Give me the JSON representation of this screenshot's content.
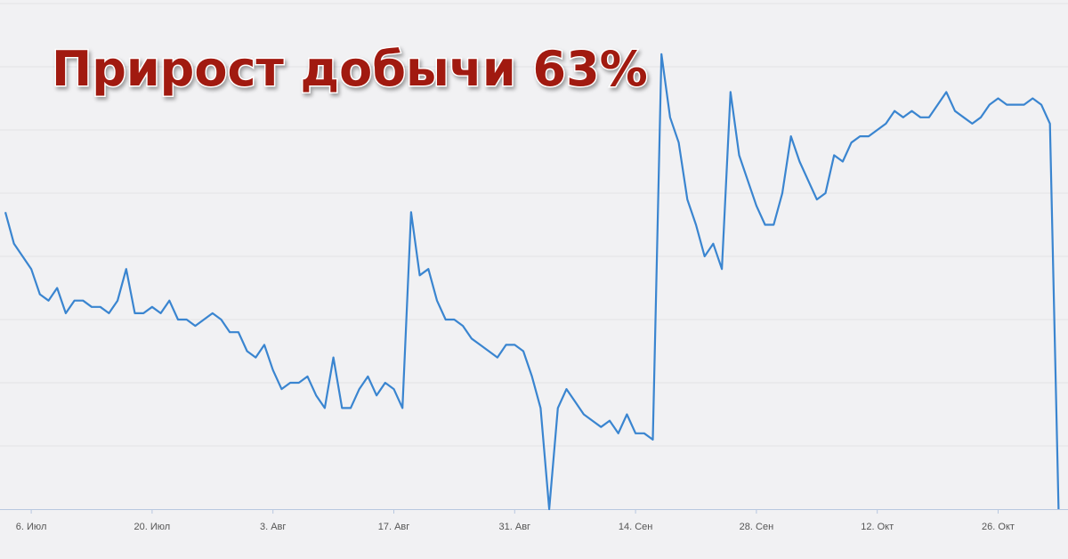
{
  "chart_data": {
    "type": "line",
    "title": "Прирост добычи 63%",
    "categories": [
      null,
      null,
      null,
      "6. Июл",
      null,
      null,
      null,
      null,
      null,
      null,
      null,
      null,
      null,
      null,
      null,
      null,
      null,
      "20. Июл",
      null,
      null,
      null,
      null,
      null,
      null,
      null,
      null,
      null,
      null,
      null,
      null,
      null,
      "3. Авг",
      null,
      null,
      null,
      null,
      null,
      null,
      null,
      null,
      null,
      null,
      null,
      null,
      null,
      "17. Авг",
      null,
      null,
      null,
      null,
      null,
      null,
      null,
      null,
      null,
      null,
      null,
      null,
      null,
      "31. Авг",
      null,
      null,
      null,
      null,
      null,
      null,
      null,
      null,
      null,
      null,
      null,
      null,
      null,
      "14. Сен",
      null,
      null,
      null,
      null,
      null,
      null,
      null,
      null,
      null,
      null,
      null,
      null,
      null,
      "28. Сен",
      null,
      null,
      null,
      null,
      null,
      null,
      null,
      null,
      null,
      null,
      null,
      null,
      null,
      "12. Окт",
      null,
      null,
      null,
      null,
      null,
      null,
      null,
      null,
      null,
      null,
      null,
      null,
      null,
      "26. Окт",
      null,
      null,
      null,
      null,
      null,
      null,
      null
    ],
    "values": [
      47,
      42,
      40,
      38,
      34,
      33,
      35,
      31,
      33,
      33,
      32,
      32,
      31,
      33,
      38,
      31,
      31,
      32,
      31,
      33,
      30,
      30,
      29,
      30,
      31,
      30,
      28,
      28,
      25,
      24,
      26,
      22,
      19,
      20,
      20,
      21,
      18,
      16,
      24,
      16,
      16,
      19,
      21,
      18,
      20,
      19,
      16,
      47,
      37,
      38,
      33,
      30,
      30,
      29,
      27,
      26,
      25,
      24,
      26,
      26,
      25,
      21,
      16,
      0,
      16,
      19,
      17,
      15,
      14,
      13,
      14,
      12,
      15,
      12,
      12,
      11,
      72,
      62,
      58,
      49,
      45,
      40,
      42,
      38,
      66,
      56,
      52,
      48,
      45,
      45,
      50,
      59,
      55,
      52,
      49,
      50,
      56,
      55,
      58,
      59,
      59,
      60,
      61,
      63,
      62,
      63,
      62,
      62,
      64,
      66,
      63,
      62,
      61,
      62,
      64,
      65,
      64,
      64,
      64,
      65,
      64,
      61,
      0
    ],
    "color": "#3a85d0",
    "ylim": [
      0,
      80
    ]
  }
}
